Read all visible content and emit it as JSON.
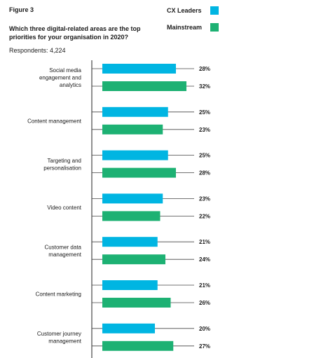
{
  "header": {
    "figure_label": "Figure 3",
    "question": "Which three digital-related areas are the top priorities for your organisation in 2020?",
    "respondents": "Respondents: 4,224"
  },
  "legend": [
    {
      "name": "CX Leaders",
      "color": "#00b5e2"
    },
    {
      "name": "Mainstream",
      "color": "#1db173"
    }
  ],
  "chart_data": {
    "type": "bar",
    "orientation": "horizontal",
    "categories": [
      [
        "Social media",
        "engagement and",
        "analytics"
      ],
      [
        "Content management"
      ],
      [
        "Targeting and",
        "personalisation"
      ],
      [
        "Video content"
      ],
      [
        "Customer data",
        "management"
      ],
      [
        "Content marketing"
      ],
      [
        "Customer journey",
        "management"
      ]
    ],
    "series": [
      {
        "name": "CX Leaders",
        "color": "#00b5e2",
        "values": [
          28,
          25,
          25,
          23,
          21,
          21,
          20
        ]
      },
      {
        "name": "Mainstream",
        "color": "#1db173",
        "values": [
          32,
          23,
          28,
          22,
          24,
          26,
          27
        ]
      }
    ],
    "value_suffix": "%",
    "xlim": [
      0,
      32
    ],
    "legend_position": "top-right"
  }
}
